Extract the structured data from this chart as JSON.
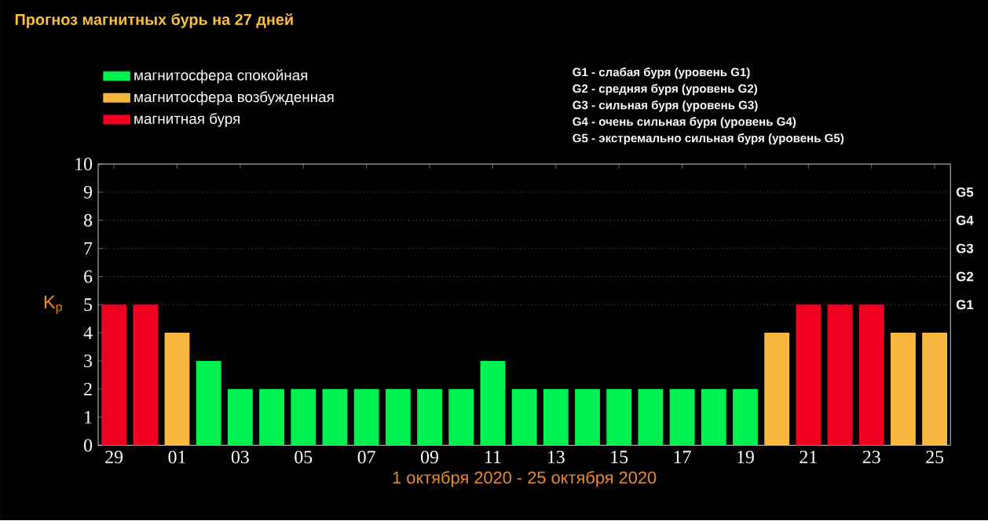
{
  "chart_data": {
    "type": "bar",
    "title": "Прогноз магнитных бурь на 27 дней",
    "xlabel": "1 октября 2020 - 25 октября 2020",
    "ylabel": "K$_{p}$",
    "categories": [
      "29",
      null,
      "01",
      null,
      "03",
      null,
      "05",
      null,
      "07",
      null,
      "09",
      null,
      "11",
      null,
      "13",
      null,
      "15",
      null,
      "17",
      null,
      "19",
      null,
      "21",
      null,
      "23",
      null,
      "25"
    ],
    "series": [
      {
        "name": "магнитосфера спокойная",
        "color": "#00f050",
        "values": [
          null,
          null,
          null,
          3,
          2,
          2,
          2,
          2,
          2,
          2,
          2,
          2,
          3,
          2,
          2,
          2,
          2,
          2,
          2,
          2,
          2,
          null,
          null,
          null,
          null,
          null,
          null
        ]
      },
      {
        "name": "магнитосфера возбужденная",
        "color": "#f8b840",
        "values": [
          null,
          null,
          4,
          null,
          null,
          null,
          null,
          null,
          null,
          null,
          null,
          null,
          null,
          null,
          null,
          null,
          null,
          null,
          null,
          null,
          null,
          4,
          null,
          null,
          null,
          4,
          4
        ]
      },
      {
        "name": "магнитная буря",
        "color": "#f00020",
        "values": [
          5,
          5,
          null,
          null,
          null,
          null,
          null,
          null,
          null,
          null,
          null,
          null,
          null,
          null,
          null,
          null,
          null,
          null,
          null,
          null,
          null,
          null,
          5,
          5,
          5,
          null,
          null
        ]
      }
    ],
    "ylim": [
      0,
      10
    ],
    "yticks": [
      0,
      1,
      2,
      3,
      4,
      5,
      6,
      7,
      8,
      9,
      10
    ],
    "ref_lines": [
      {
        "axis": "y",
        "value": 5,
        "label": "G1",
        "line_style": "dotted"
      },
      {
        "axis": "y",
        "value": 6,
        "label": "G2",
        "line_style": "dotted"
      },
      {
        "axis": "y",
        "value": 7,
        "label": "G3",
        "line_style": "dotted"
      },
      {
        "axis": "y",
        "value": 8,
        "label": "G4",
        "line_style": "dotted"
      },
      {
        "axis": "y",
        "value": 9,
        "label": "G5",
        "line_style": "dotted"
      }
    ],
    "legend": "top left",
    "annotations": [
      "G1 - слабая буря (уровень G1)",
      "G2 - средняя буря (уровень G2)",
      "G3 - сильная буря (уровень G3)",
      "G4 - очень сильная буря (уровень G4)",
      "G5 - экстремально сильная буря (уровень G5)"
    ]
  }
}
